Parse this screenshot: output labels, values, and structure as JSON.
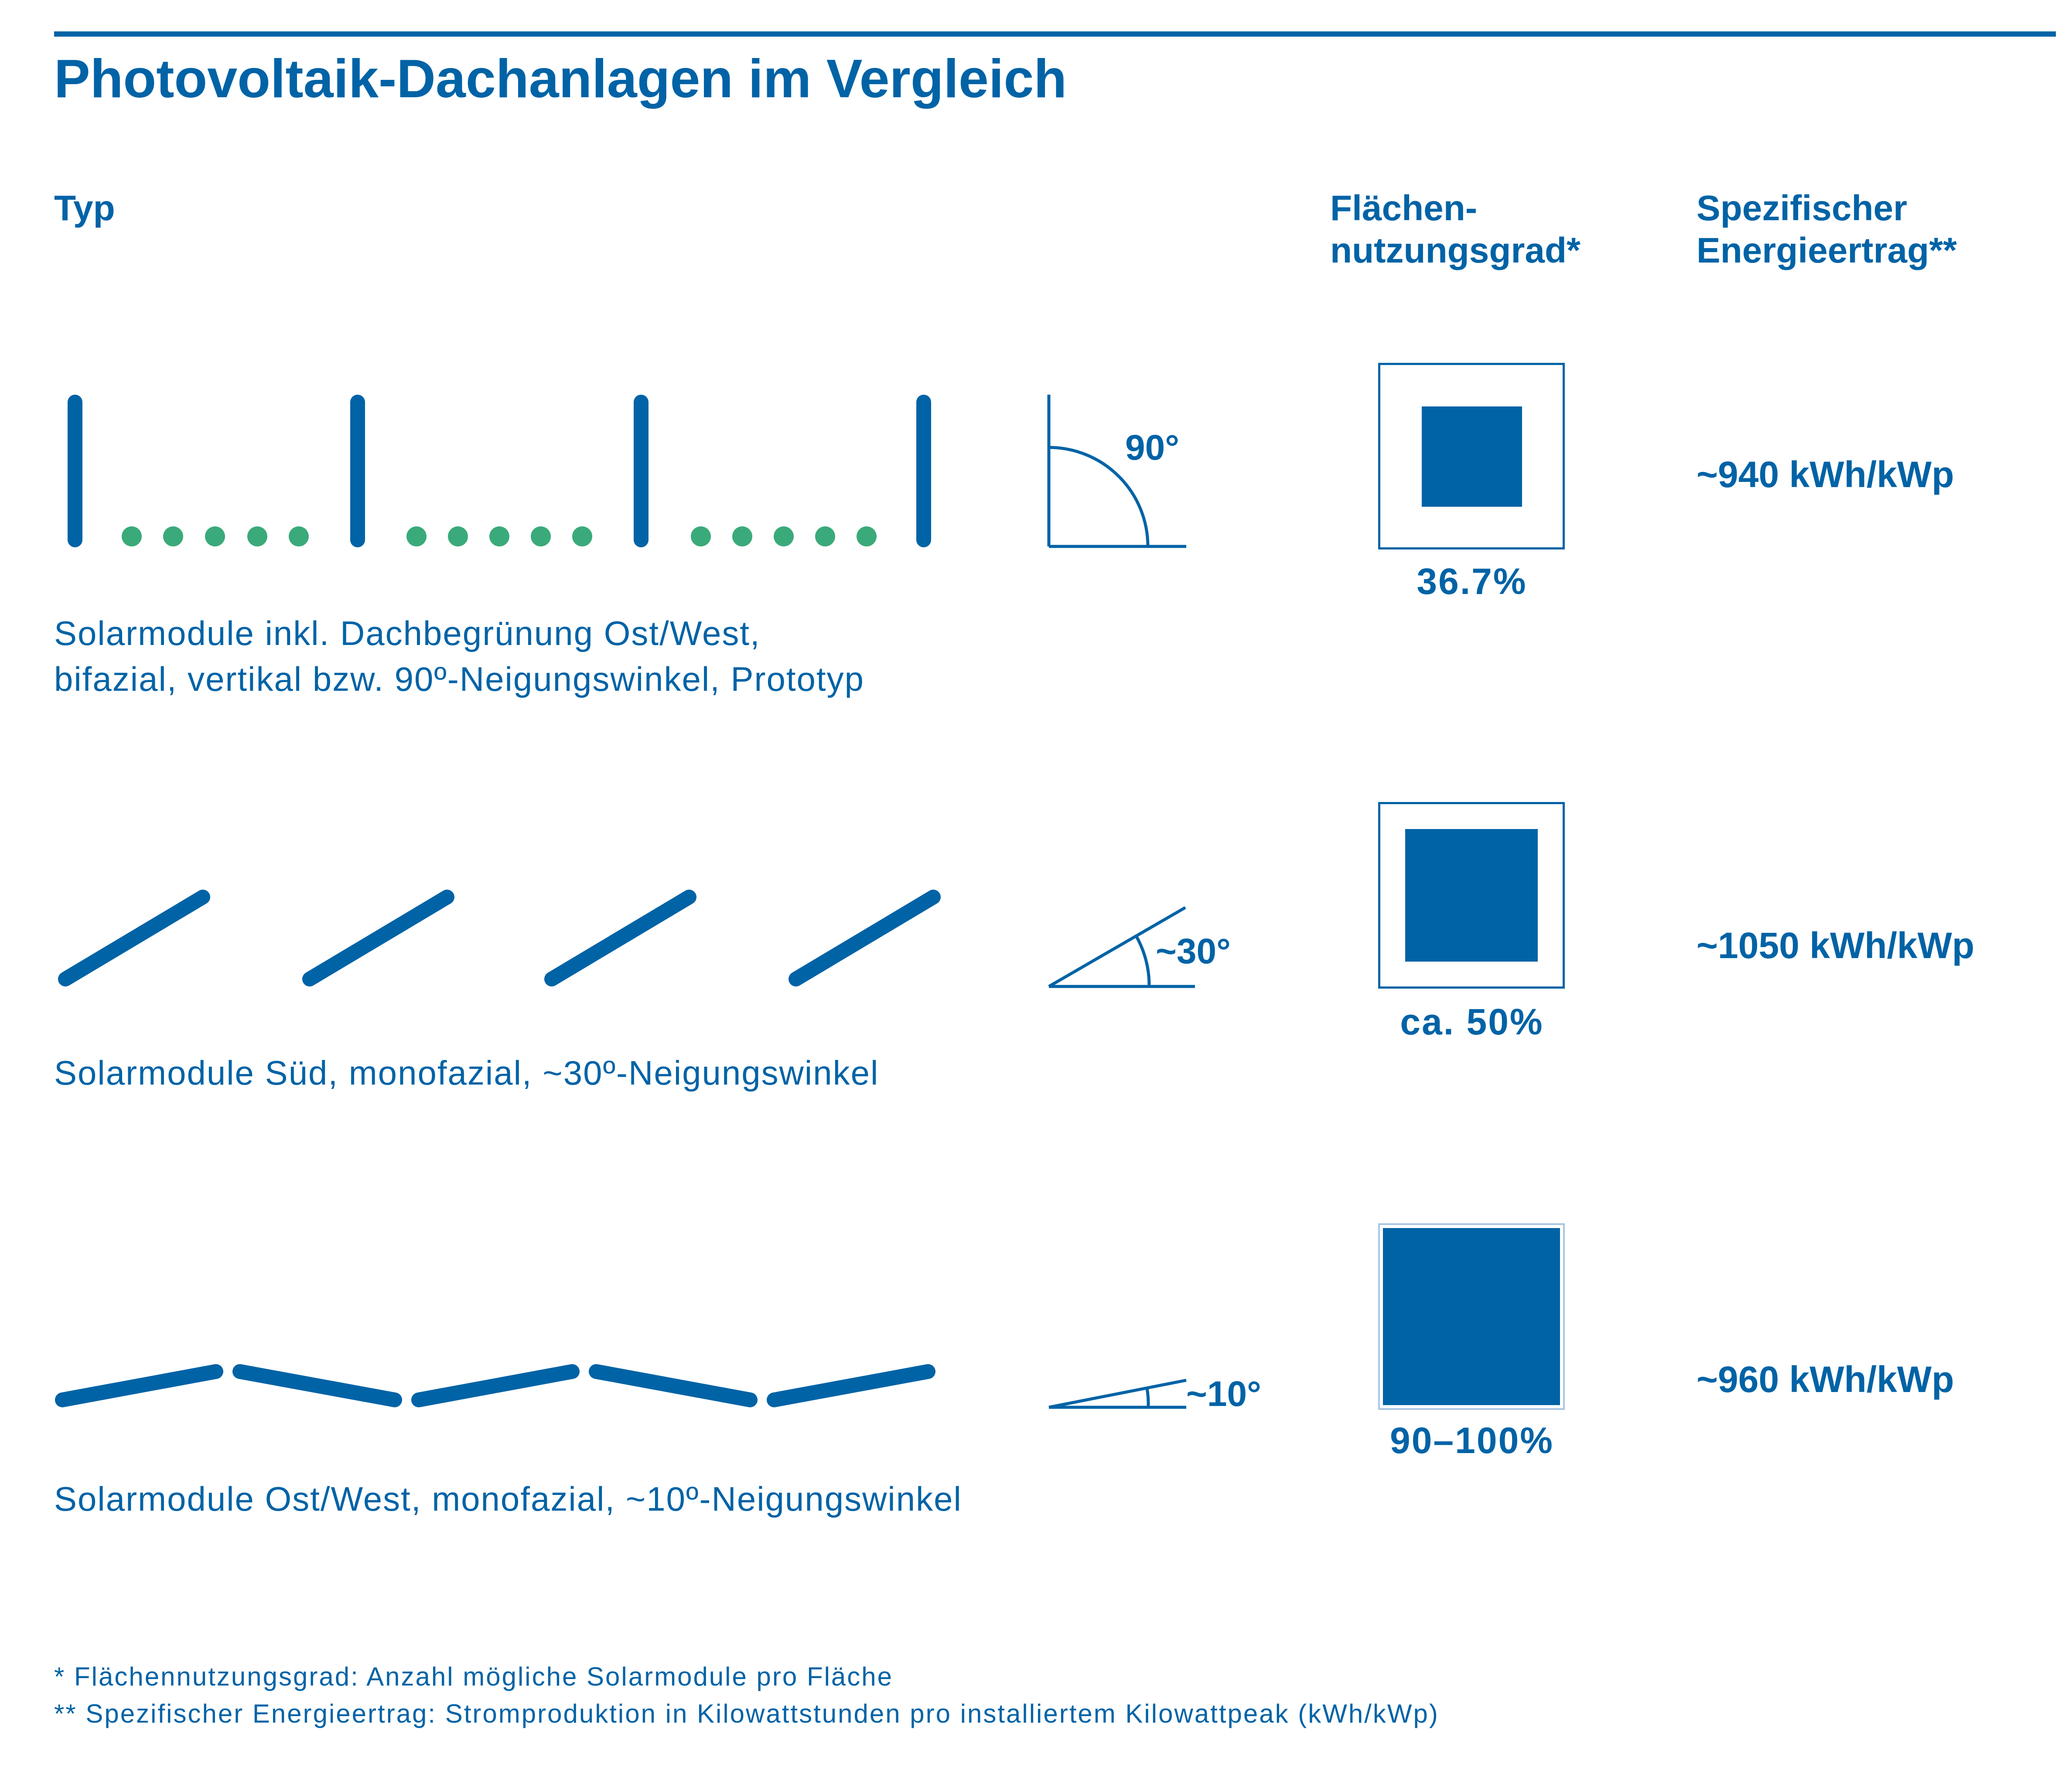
{
  "title": "Photovoltaik-Dachanlagen im Vergleich",
  "headers": {
    "type": "Typ",
    "area_usage_line1": "Flächen-",
    "area_usage_line2": "nutzungsgrad*",
    "yield_line1": "Spezifischer",
    "yield_line2": "Energieertrag**"
  },
  "rows": [
    {
      "desc_line1": "Solarmodule inkl. Dachbegrünung Ost/West,",
      "desc_line2": "bifazial, vertikal bzw. 90º-Neigungswinkel, Prototyp",
      "angle_label": "90°",
      "tilt_deg": 90,
      "area_usage_label": "36.7%",
      "area_usage_fraction": 0.367,
      "yield_label": "~940 kWh/kWp"
    },
    {
      "desc_line1": "Solarmodule Süd, monofazial, ~30º-Neigungswinkel",
      "angle_label": "~30°",
      "tilt_deg": 30,
      "area_usage_label": "ca. 50%",
      "area_usage_fraction": 0.5,
      "yield_label": "~1050 kWh/kWp"
    },
    {
      "desc_line1": "Solarmodule Ost/West, monofazial, ~10º-Neigungswinkel",
      "angle_label": "~10°",
      "tilt_deg": 10,
      "area_usage_label": "90–100%",
      "area_usage_fraction": 0.95,
      "yield_label": "~960 kWh/kWp"
    }
  ],
  "footnotes": [
    "* Flächennutzungsgrad: Anzahl mögliche Solarmodule pro Fläche",
    "** Spezifischer Energieertrag: Stromproduktion in Kilowattstunden pro installiertem Kilowattpeak (kWh/kWp)"
  ],
  "colors": {
    "primary": "#0063a6",
    "greenery": "#3aaa7a",
    "light_border": "#a9c7e2"
  }
}
